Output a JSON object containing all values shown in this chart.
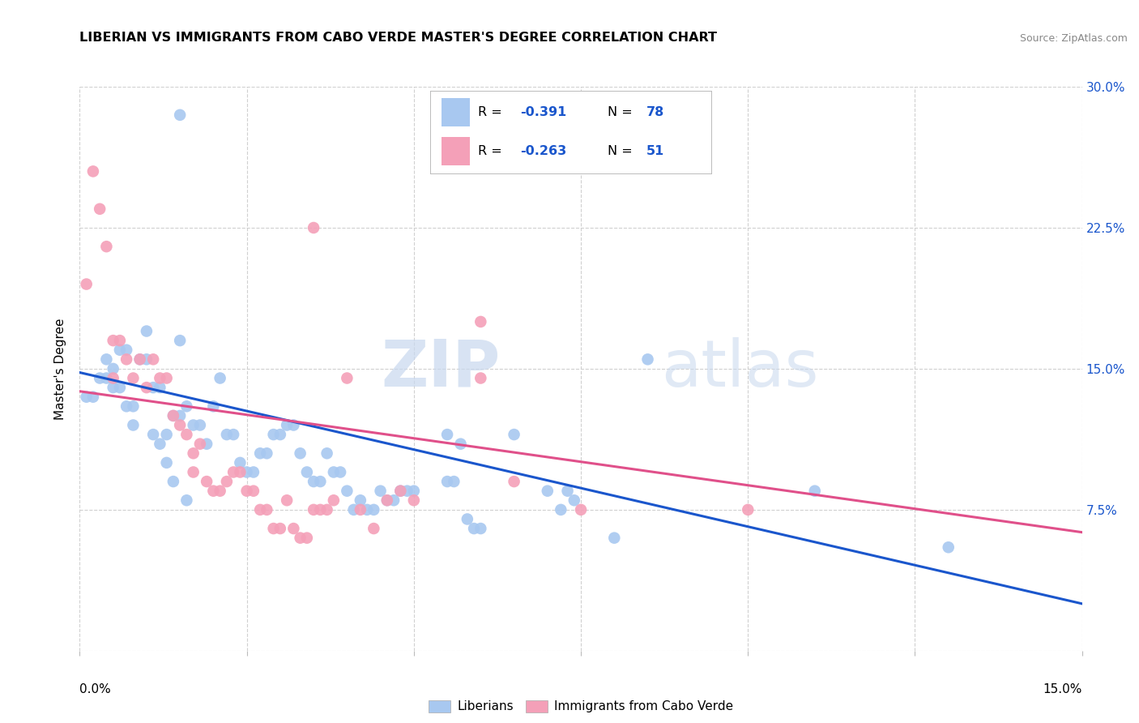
{
  "title": "LIBERIAN VS IMMIGRANTS FROM CABO VERDE MASTER'S DEGREE CORRELATION CHART",
  "source": "Source: ZipAtlas.com",
  "ylabel": "Master's Degree",
  "x_min": 0.0,
  "x_max": 0.15,
  "y_min": 0.0,
  "y_max": 0.3,
  "y_ticks": [
    0.0,
    0.075,
    0.15,
    0.225,
    0.3
  ],
  "y_tick_labels": [
    "",
    "7.5%",
    "15.0%",
    "22.5%",
    "30.0%"
  ],
  "blue_color": "#a8c8f0",
  "pink_color": "#f4a0b8",
  "blue_line_color": "#1a56cc",
  "pink_line_color": "#e0508a",
  "legend_label_blue": "Liberians",
  "legend_label_pink": "Immigrants from Cabo Verde",
  "watermark_zip": "ZIP",
  "watermark_atlas": "atlas",
  "blue_scatter": [
    [
      0.001,
      0.135
    ],
    [
      0.002,
      0.135
    ],
    [
      0.003,
      0.145
    ],
    [
      0.004,
      0.145
    ],
    [
      0.004,
      0.155
    ],
    [
      0.005,
      0.15
    ],
    [
      0.005,
      0.14
    ],
    [
      0.006,
      0.14
    ],
    [
      0.006,
      0.16
    ],
    [
      0.007,
      0.16
    ],
    [
      0.007,
      0.13
    ],
    [
      0.008,
      0.12
    ],
    [
      0.008,
      0.13
    ],
    [
      0.009,
      0.155
    ],
    [
      0.01,
      0.155
    ],
    [
      0.01,
      0.17
    ],
    [
      0.011,
      0.115
    ],
    [
      0.011,
      0.14
    ],
    [
      0.012,
      0.14
    ],
    [
      0.012,
      0.11
    ],
    [
      0.013,
      0.115
    ],
    [
      0.013,
      0.1
    ],
    [
      0.014,
      0.09
    ],
    [
      0.014,
      0.125
    ],
    [
      0.015,
      0.125
    ],
    [
      0.015,
      0.165
    ],
    [
      0.016,
      0.08
    ],
    [
      0.016,
      0.13
    ],
    [
      0.017,
      0.12
    ],
    [
      0.018,
      0.12
    ],
    [
      0.019,
      0.11
    ],
    [
      0.02,
      0.13
    ],
    [
      0.021,
      0.145
    ],
    [
      0.022,
      0.115
    ],
    [
      0.023,
      0.115
    ],
    [
      0.024,
      0.1
    ],
    [
      0.025,
      0.095
    ],
    [
      0.026,
      0.095
    ],
    [
      0.027,
      0.105
    ],
    [
      0.028,
      0.105
    ],
    [
      0.029,
      0.115
    ],
    [
      0.03,
      0.115
    ],
    [
      0.031,
      0.12
    ],
    [
      0.032,
      0.12
    ],
    [
      0.033,
      0.105
    ],
    [
      0.034,
      0.095
    ],
    [
      0.035,
      0.09
    ],
    [
      0.036,
      0.09
    ],
    [
      0.037,
      0.105
    ],
    [
      0.038,
      0.095
    ],
    [
      0.039,
      0.095
    ],
    [
      0.04,
      0.085
    ],
    [
      0.041,
      0.075
    ],
    [
      0.042,
      0.08
    ],
    [
      0.043,
      0.075
    ],
    [
      0.044,
      0.075
    ],
    [
      0.045,
      0.085
    ],
    [
      0.046,
      0.08
    ],
    [
      0.047,
      0.08
    ],
    [
      0.048,
      0.085
    ],
    [
      0.049,
      0.085
    ],
    [
      0.05,
      0.085
    ],
    [
      0.055,
      0.115
    ],
    [
      0.055,
      0.09
    ],
    [
      0.056,
      0.09
    ],
    [
      0.057,
      0.11
    ],
    [
      0.058,
      0.07
    ],
    [
      0.059,
      0.065
    ],
    [
      0.06,
      0.065
    ],
    [
      0.065,
      0.115
    ],
    [
      0.07,
      0.085
    ],
    [
      0.072,
      0.075
    ],
    [
      0.073,
      0.085
    ],
    [
      0.074,
      0.08
    ],
    [
      0.085,
      0.155
    ],
    [
      0.015,
      0.285
    ],
    [
      0.08,
      0.06
    ],
    [
      0.11,
      0.085
    ],
    [
      0.13,
      0.055
    ]
  ],
  "pink_scatter": [
    [
      0.001,
      0.195
    ],
    [
      0.002,
      0.255
    ],
    [
      0.003,
      0.235
    ],
    [
      0.004,
      0.215
    ],
    [
      0.005,
      0.165
    ],
    [
      0.005,
      0.145
    ],
    [
      0.006,
      0.165
    ],
    [
      0.007,
      0.155
    ],
    [
      0.008,
      0.145
    ],
    [
      0.009,
      0.155
    ],
    [
      0.01,
      0.14
    ],
    [
      0.011,
      0.155
    ],
    [
      0.012,
      0.145
    ],
    [
      0.013,
      0.145
    ],
    [
      0.014,
      0.125
    ],
    [
      0.015,
      0.12
    ],
    [
      0.016,
      0.115
    ],
    [
      0.017,
      0.105
    ],
    [
      0.017,
      0.095
    ],
    [
      0.018,
      0.11
    ],
    [
      0.019,
      0.09
    ],
    [
      0.02,
      0.085
    ],
    [
      0.021,
      0.085
    ],
    [
      0.022,
      0.09
    ],
    [
      0.023,
      0.095
    ],
    [
      0.024,
      0.095
    ],
    [
      0.025,
      0.085
    ],
    [
      0.026,
      0.085
    ],
    [
      0.027,
      0.075
    ],
    [
      0.028,
      0.075
    ],
    [
      0.029,
      0.065
    ],
    [
      0.03,
      0.065
    ],
    [
      0.031,
      0.08
    ],
    [
      0.032,
      0.065
    ],
    [
      0.033,
      0.06
    ],
    [
      0.034,
      0.06
    ],
    [
      0.035,
      0.075
    ],
    [
      0.036,
      0.075
    ],
    [
      0.037,
      0.075
    ],
    [
      0.038,
      0.08
    ],
    [
      0.04,
      0.145
    ],
    [
      0.042,
      0.075
    ],
    [
      0.044,
      0.065
    ],
    [
      0.046,
      0.08
    ],
    [
      0.048,
      0.085
    ],
    [
      0.05,
      0.08
    ],
    [
      0.06,
      0.145
    ],
    [
      0.065,
      0.09
    ],
    [
      0.075,
      0.075
    ],
    [
      0.1,
      0.075
    ],
    [
      0.035,
      0.225
    ],
    [
      0.06,
      0.175
    ]
  ],
  "blue_line_x": [
    0.0,
    0.15
  ],
  "blue_line_y": [
    0.148,
    0.025
  ],
  "pink_line_x": [
    0.0,
    0.15
  ],
  "pink_line_y": [
    0.138,
    0.063
  ]
}
